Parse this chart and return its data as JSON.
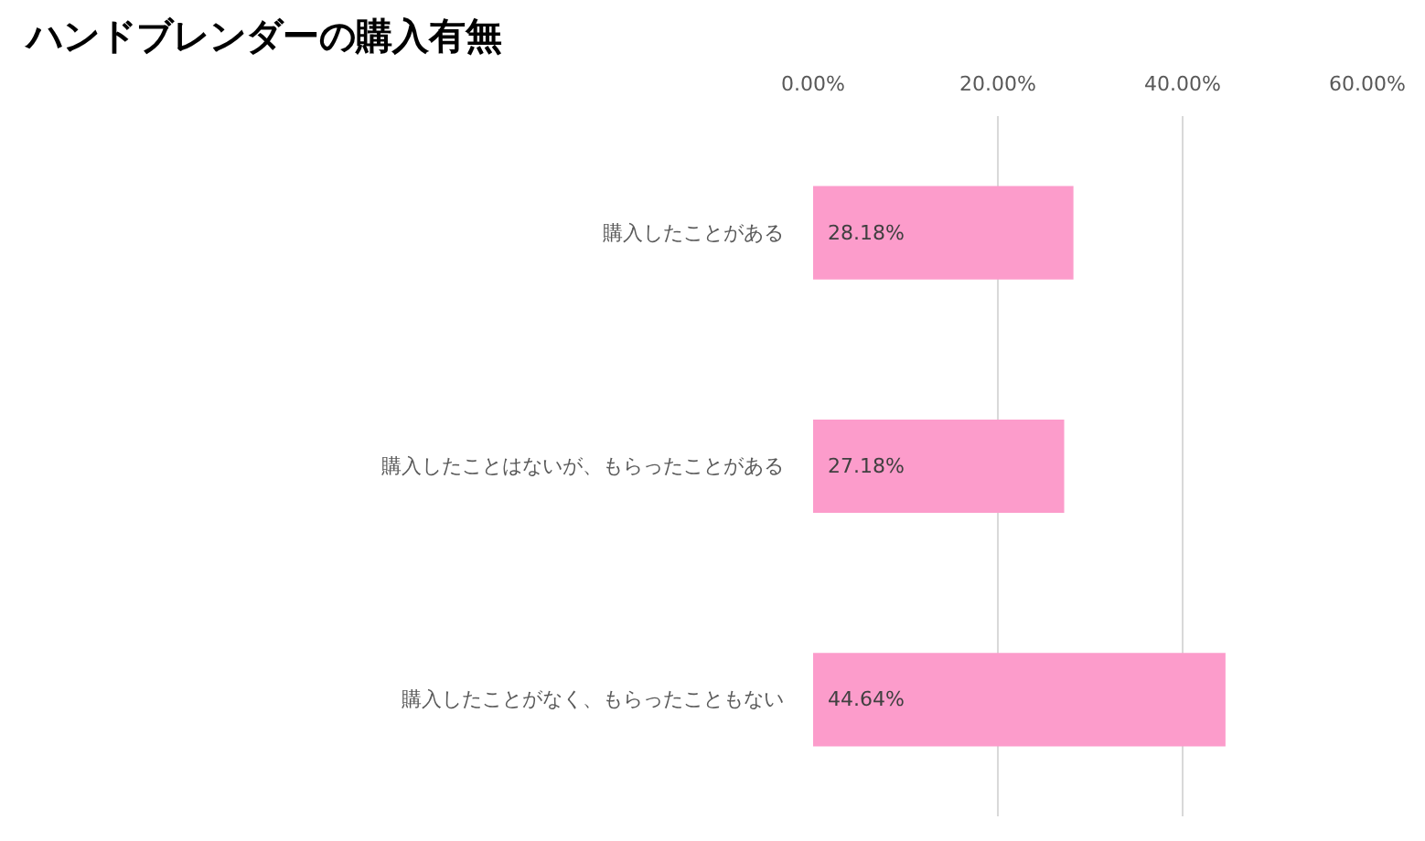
{
  "chart_data": {
    "type": "bar",
    "orientation": "horizontal",
    "title": "ハンドブレンダーの購入有無",
    "categories": [
      "購入したことがある",
      "購入したことはないが、もらったことがある",
      "購入したことがなく、もらったこともない"
    ],
    "values": [
      28.18,
      27.18,
      44.64
    ],
    "color": "#fc9ccb",
    "value_labels": [
      "28.18%",
      "27.18%",
      "44.64%"
    ],
    "xlim": [
      0,
      60
    ],
    "xticks": [
      {
        "value": 0,
        "label": "0.00%"
      },
      {
        "value": 20,
        "label": "20.00%"
      },
      {
        "value": 40,
        "label": "40.00%"
      },
      {
        "value": 60,
        "label": "60.00%"
      }
    ],
    "grid": "x"
  }
}
